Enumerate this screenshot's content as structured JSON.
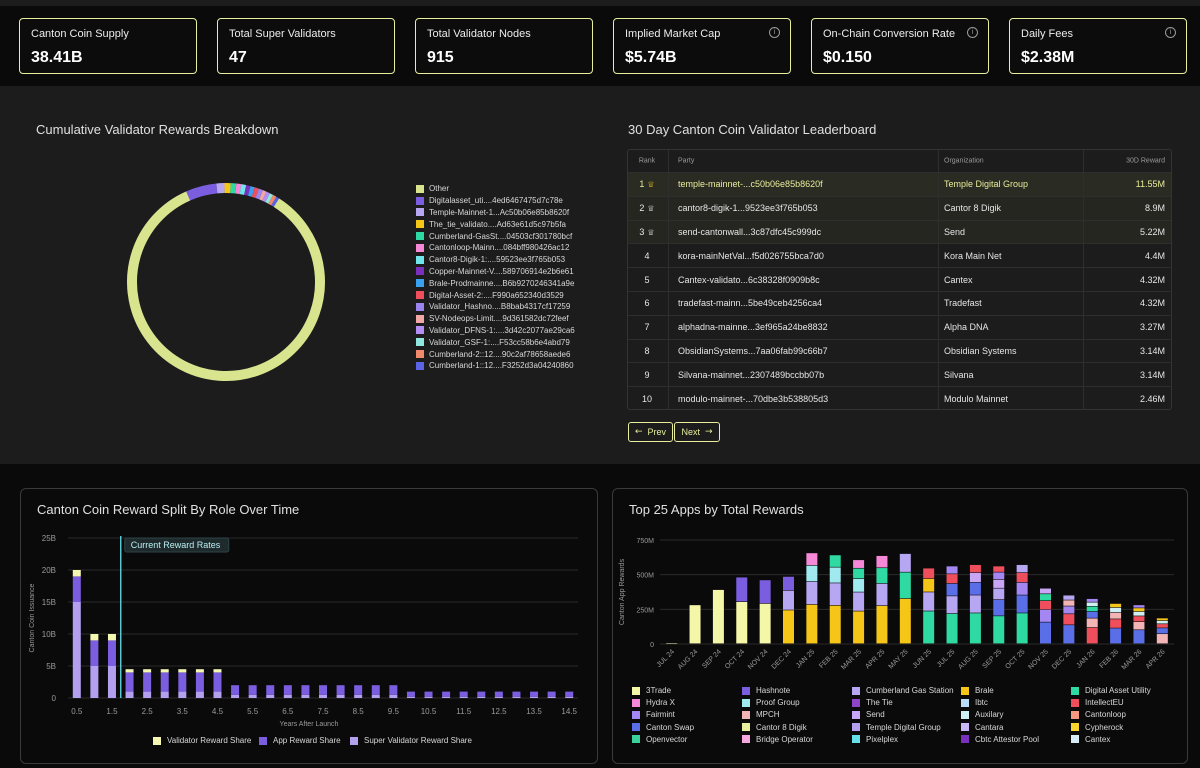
{
  "stats": [
    {
      "label": "Canton Coin Supply",
      "value": "38.41B",
      "info": false
    },
    {
      "label": "Total Super Validators",
      "value": "47",
      "info": false
    },
    {
      "label": "Total Validator Nodes",
      "value": "915",
      "info": false
    },
    {
      "label": "Implied Market Cap",
      "value": "$5.74B",
      "info": true
    },
    {
      "label": "On-Chain Conversion Rate",
      "value": "$0.150",
      "info": true
    },
    {
      "label": "Daily Fees",
      "value": "$2.38M",
      "info": true
    }
  ],
  "info_glyph": "i",
  "rewards_breakdown": {
    "title": "Cumulative Validator Rewards Breakdown",
    "chart_data": {
      "type": "pie",
      "labels": [
        "Other",
        "Digitalasset_uti....4ed6467475d7c78e",
        "Temple-Mainnet-1...Ac50b06e85b8620f",
        "The_tie_validato....Ad63e61d5c97b5fa",
        "Cumberland-GasSt....04503cf301780bcf",
        "Cantonloop-Mainn....084bff980426ac12",
        "Cantor8-Digik-1:....59523ee3f765b053",
        "Copper-Mainnet-V....589706914e2b6e61",
        "Brale-Prodmainne....B6b9270246341a9e",
        "Digital-Asset-2:....F990a652340d3529",
        "Validator_Hashno....B8bab4317cf17259",
        "SV-Nodeops-Limit....9d361582dc72feef",
        "Validator_DFNS-1:....3d42c2077ae29ca6",
        "Validator_GSF-1:....F53cc58b6e4abd79",
        "Cumberland-2::12....90c2af78658aede6",
        "Cumberland-1::12....F3252d3a04240860"
      ],
      "values": [
        84.0,
        5.0,
        1.3,
        1.0,
        0.9,
        0.8,
        0.8,
        0.7,
        0.7,
        0.7,
        0.7,
        0.6,
        0.6,
        0.6,
        0.6,
        0.5
      ],
      "colors": [
        "#d9e48f",
        "#7b5ee0",
        "#b7a6f2",
        "#f5c518",
        "#2fd9a2",
        "#f589d8",
        "#6fe6ec",
        "#7a2fbe",
        "#3aa0f0",
        "#ef4f5c",
        "#9c84f0",
        "#f2a7a7",
        "#b48ef5",
        "#8fe7e0",
        "#f08a6a",
        "#5b63e6"
      ],
      "legend_position": "right"
    }
  },
  "leaderboard": {
    "title": "30 Day Canton Coin Validator Leaderboard",
    "headers": {
      "rank": "Rank",
      "party": "Party",
      "org": "Organization",
      "reward": "30D Reward"
    },
    "rows": [
      {
        "rank": "1",
        "party": "temple-mainnet-...c50b06e85b8620f",
        "org": "Temple Digital Group",
        "reward": "11.55M"
      },
      {
        "rank": "2",
        "party": "cantor8-digik-1...9523ee3f765b053",
        "org": "Cantor 8 Digik",
        "reward": "8.9M"
      },
      {
        "rank": "3",
        "party": "send-cantonwall...3c87dfc45c999dc",
        "org": "Send",
        "reward": "5.22M"
      },
      {
        "rank": "4",
        "party": "kora-mainNetVal...f5d026755bca7d0",
        "org": "Kora Main Net",
        "reward": "4.4M"
      },
      {
        "rank": "5",
        "party": "Cantex-validato...6c38328f0909b8c",
        "org": "Cantex",
        "reward": "4.32M"
      },
      {
        "rank": "6",
        "party": "tradefast-mainn...5be49ceb4256ca4",
        "org": "Tradefast",
        "reward": "4.32M"
      },
      {
        "rank": "7",
        "party": "alphadna-mainne...3ef965a24be8832",
        "org": "Alpha DNA",
        "reward": "3.27M"
      },
      {
        "rank": "8",
        "party": "ObsidianSystems...7aa06fab99c66b7",
        "org": "Obsidian Systems",
        "reward": "3.14M"
      },
      {
        "rank": "9",
        "party": "Silvana-mainnet...2307489bccbb07b",
        "org": "Silvana",
        "reward": "3.14M"
      },
      {
        "rank": "10",
        "party": "modulo-mainnet-...70dbe3b538805d3",
        "org": "Modulo Mainnet",
        "reward": "2.46M"
      }
    ],
    "prev_label": "Prev",
    "next_label": "Next",
    "prev_glyph": "←",
    "next_glyph": "→",
    "trophy_glyph": "♕"
  },
  "reward_split": {
    "title": "Canton Coin Reward Split By Role Over Time",
    "annotation": "Current Reward Rates",
    "chart_data": {
      "type": "bar",
      "xlabel": "Years After Launch",
      "ylabel": "Canton Coin Issuance",
      "yticks": [
        "0",
        "5B",
        "10B",
        "15B",
        "20B",
        "25B"
      ],
      "ylim": [
        0,
        25
      ],
      "x_tick_labels": [
        "0.5",
        "1.5",
        "2.5",
        "3.5",
        "4.5",
        "5.5",
        "6.5",
        "7.5",
        "8.5",
        "9.5",
        "10.5",
        "11.5",
        "12.5",
        "13.5",
        "14.5"
      ],
      "x": [
        0.5,
        1,
        1.5,
        2,
        2.5,
        3,
        3.5,
        4,
        4.5,
        5,
        5.5,
        6,
        6.5,
        7,
        7.5,
        8,
        8.5,
        9,
        9.5,
        10,
        10.5,
        11,
        11.5,
        12,
        12.5,
        13,
        13.5,
        14,
        14.5
      ],
      "annotation_x": 1.75,
      "series": [
        {
          "name": "Super Validator Reward Share",
          "color": "#b3a1f0",
          "values": [
            15.0,
            5.0,
            5.0,
            1.0,
            1.0,
            1.0,
            1.0,
            1.0,
            1.0,
            0.5,
            0.5,
            0.5,
            0.5,
            0.5,
            0.5,
            0.5,
            0.5,
            0.5,
            0.5,
            0.2,
            0.2,
            0.2,
            0.2,
            0.2,
            0.2,
            0.2,
            0.2,
            0.2,
            0.2
          ]
        },
        {
          "name": "App Reward Share",
          "color": "#7b5ee0",
          "values": [
            4.0,
            4.0,
            4.0,
            3.0,
            3.0,
            3.0,
            3.0,
            3.0,
            3.0,
            1.5,
            1.5,
            1.5,
            1.5,
            1.5,
            1.5,
            1.5,
            1.5,
            1.5,
            1.5,
            0.8,
            0.8,
            0.8,
            0.8,
            0.8,
            0.8,
            0.8,
            0.8,
            0.8,
            0.8
          ]
        },
        {
          "name": "Validator Reward Share",
          "color": "#f4f7b0",
          "values": [
            1.0,
            1.0,
            1.0,
            0.5,
            0.5,
            0.5,
            0.5,
            0.5,
            0.5,
            0.0,
            0.0,
            0.0,
            0.0,
            0.0,
            0.0,
            0.0,
            0.0,
            0.0,
            0.0,
            0.0,
            0.0,
            0.0,
            0.0,
            0.0,
            0.0,
            0.0,
            0.0,
            0.0,
            0.0
          ]
        }
      ],
      "legend_position": "bottom"
    }
  },
  "top_apps": {
    "title": "Top 25 Apps by Total Rewards",
    "chart_data": {
      "type": "bar",
      "ylabel": "Canton App Rewards",
      "yticks": [
        "0",
        "250M",
        "500M",
        "750M"
      ],
      "ylim": [
        0,
        750
      ],
      "categories": [
        "JUL 24",
        "AUG 24",
        "SEP 24",
        "OCT 24",
        "NOV 24",
        "DEC 24",
        "JAN 25",
        "FEB 25",
        "MAR 25",
        "APR 25",
        "MAY 25",
        "JUN 25",
        "JUL 25",
        "AUG 25",
        "SEP 25",
        "OCT 25",
        "NOV 25",
        "DEC 25",
        "JAN 26",
        "FEB 26",
        "MAR 26",
        "APR 26"
      ],
      "totals": [
        5,
        280,
        390,
        480,
        460,
        485,
        655,
        640,
        605,
        635,
        650,
        545,
        560,
        570,
        560,
        570,
        400,
        350,
        325,
        290,
        280,
        185
      ],
      "legend": [
        {
          "name": "3Trade",
          "color": "#f4f7a8"
        },
        {
          "name": "Hashnote",
          "color": "#7b5ee0"
        },
        {
          "name": "Cumberland Gas Station",
          "color": "#b7a6f2"
        },
        {
          "name": "Brale",
          "color": "#f5c518"
        },
        {
          "name": "Digital Asset Utility",
          "color": "#2fd9a2"
        },
        {
          "name": "Hydra X",
          "color": "#f589d8"
        },
        {
          "name": "Proof Group",
          "color": "#9fe9ef"
        },
        {
          "name": "The Tie",
          "color": "#8e44c8"
        },
        {
          "name": "Ibtc",
          "color": "#b9dcf7"
        },
        {
          "name": "IntellectEU",
          "color": "#ef4f5c"
        },
        {
          "name": "Fairmint",
          "color": "#a487f2"
        },
        {
          "name": "MPCH",
          "color": "#f2b4b4"
        },
        {
          "name": "Send",
          "color": "#c9a6f5"
        },
        {
          "name": "Auxilary",
          "color": "#cfeff2"
        },
        {
          "name": "Cantonloop",
          "color": "#f59a80"
        },
        {
          "name": "Canton Swap",
          "color": "#5a6ee8"
        },
        {
          "name": "Cantor 8 Digik",
          "color": "#e8ef9c"
        },
        {
          "name": "Temple Digital Group",
          "color": "#b3a1f0"
        },
        {
          "name": "Cantara",
          "color": "#c8b8f7"
        },
        {
          "name": "Cypherock",
          "color": "#f8d52e"
        },
        {
          "name": "Openvector",
          "color": "#3ad19b"
        },
        {
          "name": "Bridge Operator",
          "color": "#f7a6df"
        },
        {
          "name": "Pixelplex",
          "color": "#63e0e8"
        },
        {
          "name": "Cbtc Attestor Pool",
          "color": "#7a2fbe"
        },
        {
          "name": "Cantex",
          "color": "#d7ecf7"
        }
      ],
      "legend_position": "bottom"
    }
  }
}
